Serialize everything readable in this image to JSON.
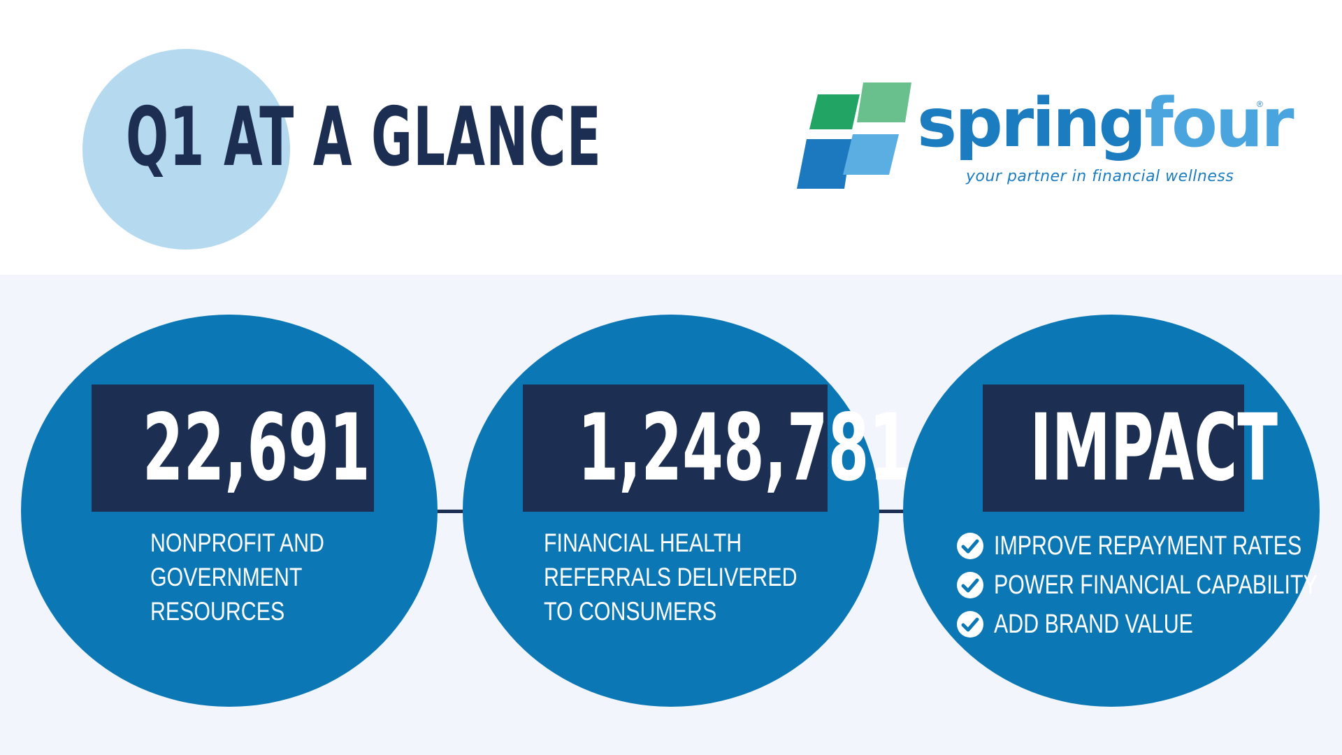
{
  "header": {
    "title": "Q1 AT A GLANCE"
  },
  "logo": {
    "icon": "springfour-logo-mark",
    "wordmark_part1": "spring",
    "wordmark_part2": "four",
    "registered": "®",
    "tagline": "your partner in financial wellness",
    "colors": {
      "dark_green": "#21a464",
      "light_green": "#6ac08c",
      "dark_blue": "#1c78bf",
      "light_blue": "#5aaee2",
      "wordmark_blue": "#1b7cc0",
      "wordmark_light_blue": "#4aa5de"
    }
  },
  "stats": [
    {
      "value": "22,691",
      "description_lines": [
        "NONPROFIT AND",
        "GOVERNMENT",
        "RESOURCES"
      ]
    },
    {
      "value": "1,248,781",
      "description_lines": [
        "FINANCIAL HEALTH",
        "REFERRALS DELIVERED",
        "TO CONSUMERS"
      ]
    },
    {
      "value": "IMPACT",
      "checklist": [
        "IMPROVE REPAYMENT RATES",
        "POWER FINANCIAL CAPABILITY",
        "ADD BRAND VALUE"
      ],
      "check_icon": "check-circle-icon"
    }
  ],
  "colors": {
    "navy": "#1c2e52",
    "circle_blue": "#0c77b5",
    "light_circle": "#b5daf0",
    "panel_bg": "#f2f6fc"
  }
}
